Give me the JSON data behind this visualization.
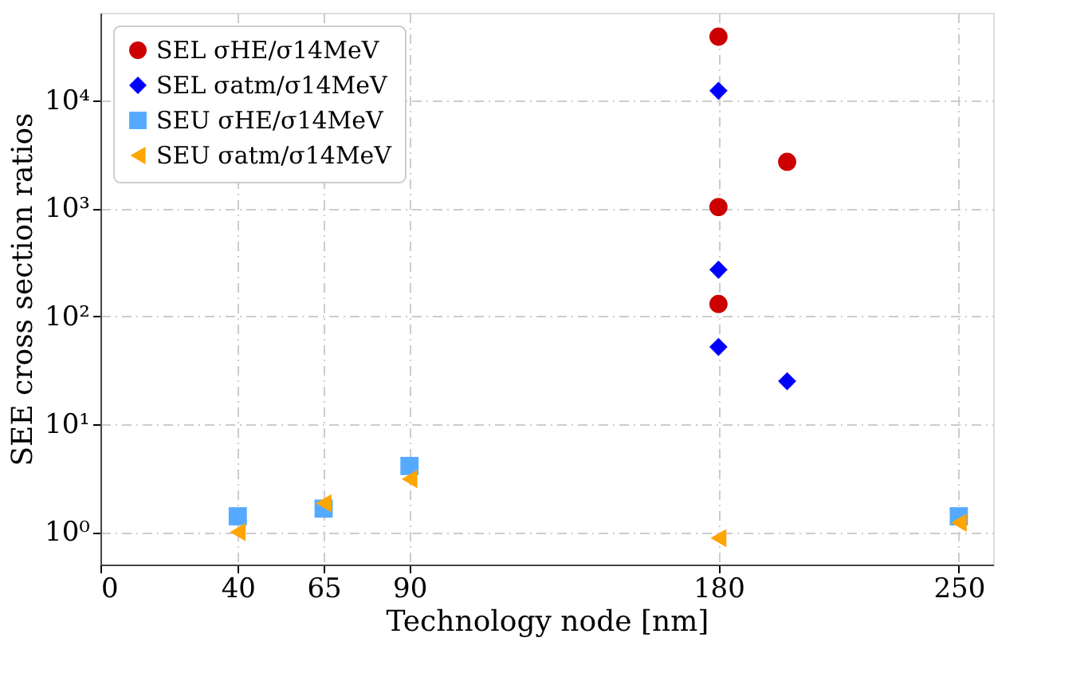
{
  "chart_data": {
    "type": "scatter",
    "xlabel": "Technology node [nm]",
    "ylabel": "SEE cross section ratios",
    "xlim": [
      0,
      260
    ],
    "xticks": [
      0,
      40,
      65,
      90,
      180,
      250
    ],
    "ylim": [
      0.5,
      65000
    ],
    "yticks": [
      {
        "value": 1,
        "label": "10⁰"
      },
      {
        "value": 10,
        "label": "10¹"
      },
      {
        "value": 100,
        "label": "10²"
      },
      {
        "value": 1000,
        "label": "10³"
      },
      {
        "value": 10000,
        "label": "10⁴"
      }
    ],
    "log": "y",
    "grid": true,
    "legend": "top left",
    "series": [
      {
        "name": "SEL σHE/σ14MeV",
        "color": "#cc0000",
        "marker": "circle",
        "x": [
          180,
          180,
          180,
          200
        ],
        "values": [
          39000,
          1030,
          130,
          2700
        ]
      },
      {
        "name": "SEL σatm/σ14MeV",
        "color": "#0000ff",
        "marker": "diamond",
        "x": [
          180,
          180,
          180,
          200
        ],
        "values": [
          12300,
          270,
          52,
          25
        ]
      },
      {
        "name": "SEU σHE/σ14MeV",
        "color": "#55aaff",
        "marker": "square",
        "x": [
          40,
          65,
          90,
          250
        ],
        "values": [
          1.4,
          1.65,
          4.1,
          1.4
        ]
      },
      {
        "name": "SEU σatm/σ14MeV",
        "color": "#ffa500",
        "marker": "triangle",
        "x": [
          40,
          65,
          90,
          180,
          250
        ],
        "values": [
          1.0,
          1.85,
          3.1,
          0.88,
          1.22
        ]
      }
    ]
  }
}
